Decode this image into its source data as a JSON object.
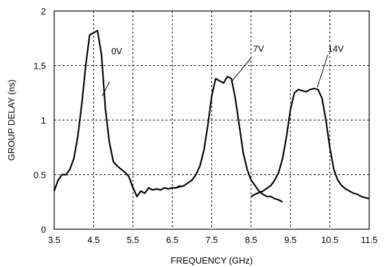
{
  "chart_data": {
    "type": "line",
    "title": "",
    "xlabel": "FREQUENCY (GHz)",
    "ylabel": "GROUP DELAY (ns)",
    "xlim": [
      3.5,
      11.5
    ],
    "ylim": [
      0,
      2
    ],
    "xticks": [
      "3.5",
      "4.5",
      "5.5",
      "6.5",
      "7.5",
      "8.5",
      "9.5",
      "10.5",
      "11.5"
    ],
    "yticks": [
      "0",
      "0.5",
      "1",
      "1.5",
      "2"
    ],
    "grid": true,
    "grid_style": "dashed",
    "line_color": "#000000",
    "series": [
      {
        "name": "0V",
        "x": [
          3.5,
          3.6,
          3.7,
          3.8,
          3.9,
          4.0,
          4.1,
          4.2,
          4.3,
          4.4,
          4.5,
          4.6,
          4.7,
          4.8,
          4.9,
          5.0,
          5.1,
          5.2,
          5.3,
          5.4,
          5.5,
          5.6,
          5.7,
          5.8,
          5.9,
          6.0,
          6.1,
          6.2,
          6.3,
          6.4,
          6.5,
          6.6,
          6.7
        ],
        "y": [
          0.35,
          0.45,
          0.5,
          0.5,
          0.55,
          0.65,
          0.85,
          1.15,
          1.5,
          1.78,
          1.8,
          1.82,
          1.6,
          1.1,
          0.8,
          0.62,
          0.58,
          0.55,
          0.52,
          0.48,
          0.38,
          0.3,
          0.35,
          0.33,
          0.38,
          0.36,
          0.37,
          0.36,
          0.38,
          0.37,
          0.38,
          0.38,
          0.4
        ]
      },
      {
        "name": "7V",
        "x": [
          6.5,
          6.6,
          6.8,
          7.0,
          7.1,
          7.2,
          7.3,
          7.4,
          7.5,
          7.6,
          7.7,
          7.8,
          7.9,
          8.0,
          8.1,
          8.2,
          8.3,
          8.4,
          8.5,
          8.6,
          8.7,
          8.8,
          8.9,
          9.0,
          9.1,
          9.2,
          9.3
        ],
        "y": [
          0.38,
          0.38,
          0.4,
          0.45,
          0.5,
          0.58,
          0.72,
          0.95,
          1.22,
          1.38,
          1.36,
          1.34,
          1.4,
          1.38,
          1.2,
          0.95,
          0.7,
          0.55,
          0.45,
          0.4,
          0.35,
          0.32,
          0.3,
          0.3,
          0.28,
          0.27,
          0.25
        ]
      },
      {
        "name": "14V",
        "x": [
          8.5,
          8.6,
          8.8,
          9.0,
          9.1,
          9.2,
          9.3,
          9.4,
          9.5,
          9.6,
          9.7,
          9.8,
          9.9,
          10.0,
          10.1,
          10.2,
          10.3,
          10.4,
          10.5,
          10.6,
          10.7,
          10.8,
          10.9,
          11.0,
          11.1,
          11.2,
          11.3,
          11.4,
          11.5
        ],
        "y": [
          0.3,
          0.32,
          0.35,
          0.4,
          0.45,
          0.52,
          0.65,
          0.85,
          1.1,
          1.25,
          1.28,
          1.27,
          1.26,
          1.28,
          1.29,
          1.28,
          1.2,
          1.0,
          0.75,
          0.55,
          0.45,
          0.4,
          0.37,
          0.35,
          0.33,
          0.32,
          0.3,
          0.29,
          0.28
        ]
      }
    ],
    "annotations": [
      {
        "text": "0V",
        "series": 0
      },
      {
        "text": "7V",
        "series": 1
      },
      {
        "text": "14V",
        "series": 2
      }
    ]
  }
}
